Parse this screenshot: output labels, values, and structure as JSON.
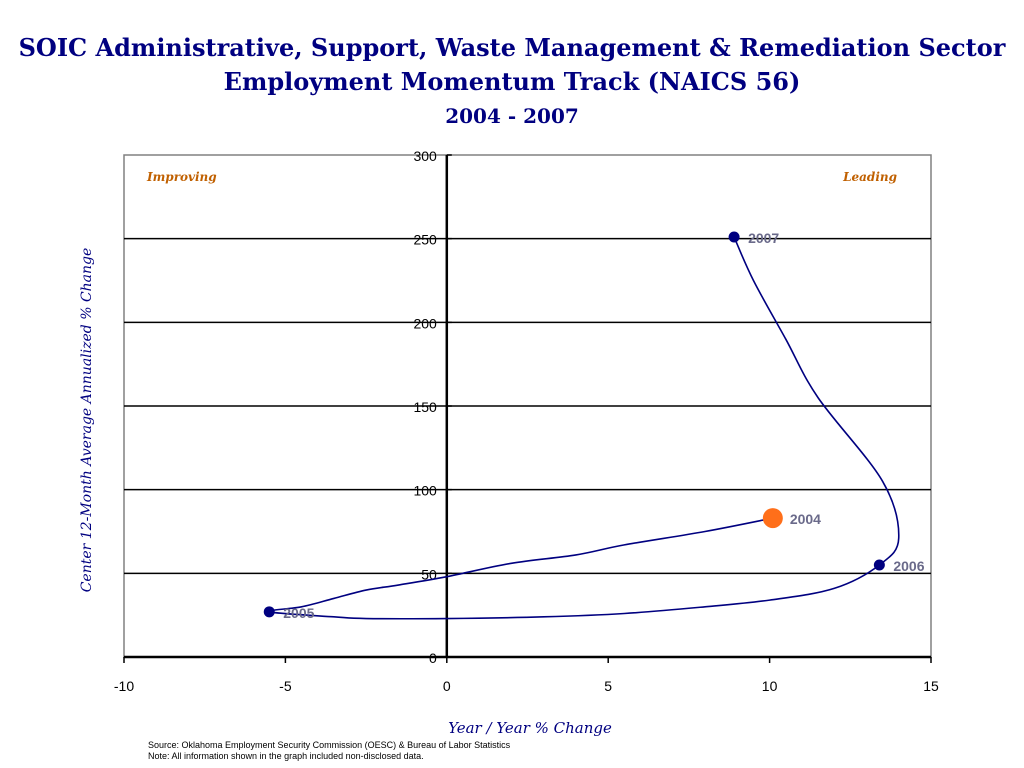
{
  "header": {
    "title_line1": "SOIC Administrative, Support, Waste Management & Remediation Sector",
    "title_line2": "Employment Momentum Track (NAICS 56)",
    "subtitle": "2004 - 2007"
  },
  "footer": {
    "source": "Source:  Oklahoma Employment Security Commission (OESC) & Bureau of Labor Statistics",
    "note": "Note: All information shown in the graph included non-disclosed data."
  },
  "chart_data": {
    "type": "scatter",
    "title": "SOIC Administrative, Support, Waste Management & Remediation Sector Employment Momentum Track (NAICS 56)",
    "subtitle": "2004 - 2007",
    "xlabel": "Year / Year % Change",
    "ylabel": "Center 12-Month Average Annualized % Change",
    "xlim": [
      -10,
      15
    ],
    "ylim": [
      0,
      300
    ],
    "x_ticks": [
      -10,
      -5,
      0,
      5,
      10,
      15
    ],
    "y_ticks": [
      0,
      50,
      100,
      150,
      200,
      250,
      300
    ],
    "grid": "horizontal",
    "quadrant_labels": {
      "top_left": "Improving",
      "top_right": "Leading"
    },
    "points": [
      {
        "label": "2004",
        "x": 10.1,
        "y": 83,
        "color": "#ff6f1a"
      },
      {
        "label": "2005",
        "x": -5.5,
        "y": 27,
        "color": "#000080"
      },
      {
        "label": "2006",
        "x": 13.4,
        "y": 55,
        "color": "#000080"
      },
      {
        "label": "2007",
        "x": 8.9,
        "y": 251,
        "color": "#000080"
      }
    ],
    "track": [
      [
        10.1,
        83
      ],
      [
        8,
        75
      ],
      [
        5.5,
        67
      ],
      [
        4,
        61
      ],
      [
        2,
        56
      ],
      [
        0,
        48
      ],
      [
        -1.5,
        43
      ],
      [
        -2.5,
        40
      ],
      [
        -3.5,
        35
      ],
      [
        -4.5,
        30
      ],
      [
        -5.5,
        27
      ],
      [
        -3.5,
        24
      ],
      [
        -2.5,
        23
      ],
      [
        0,
        23
      ],
      [
        3,
        24
      ],
      [
        5.5,
        26
      ],
      [
        8,
        30
      ],
      [
        10,
        34
      ],
      [
        12,
        41
      ],
      [
        13.4,
        55
      ],
      [
        14,
        71
      ],
      [
        13.5,
        105
      ],
      [
        11.5,
        155
      ],
      [
        10.5,
        190
      ],
      [
        9.5,
        225
      ],
      [
        8.9,
        251
      ]
    ],
    "colors": {
      "track": "#000080",
      "point_label": "#6a6a8a",
      "quadrant_label": "#c06000",
      "axis_title": "#000080"
    }
  }
}
